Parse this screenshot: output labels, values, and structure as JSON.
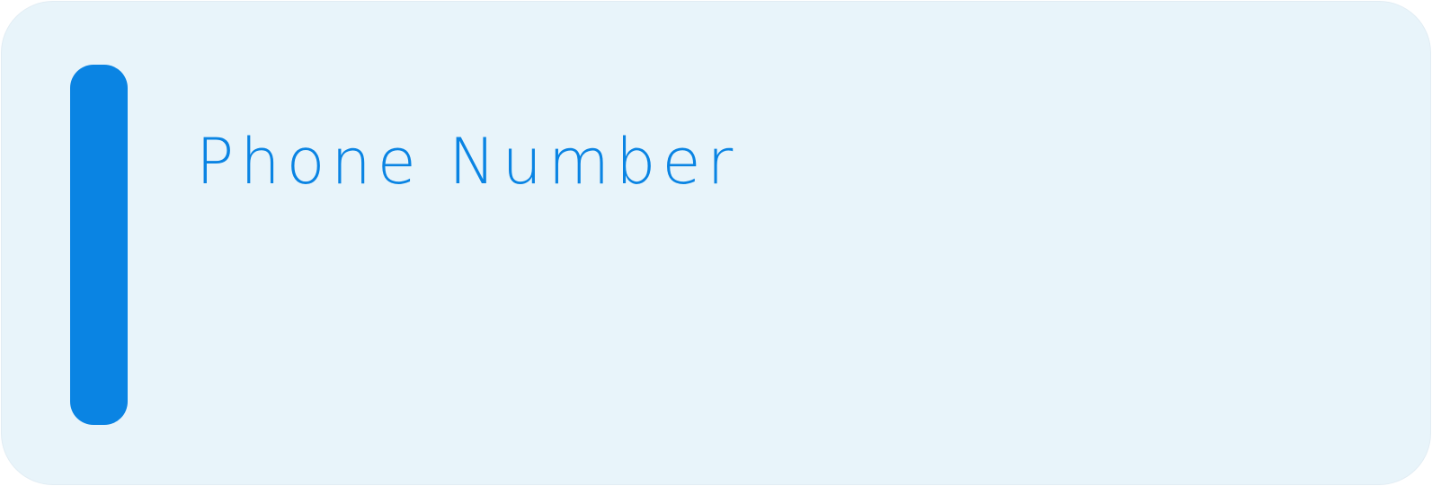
{
  "field": {
    "label": "Phone Number"
  },
  "colors": {
    "background": "#e8f4fa",
    "accent": "#0a84e3",
    "label_text": "#0a84e3"
  },
  "icons": {
    "accent_bar": "vertical-accent-bar"
  }
}
